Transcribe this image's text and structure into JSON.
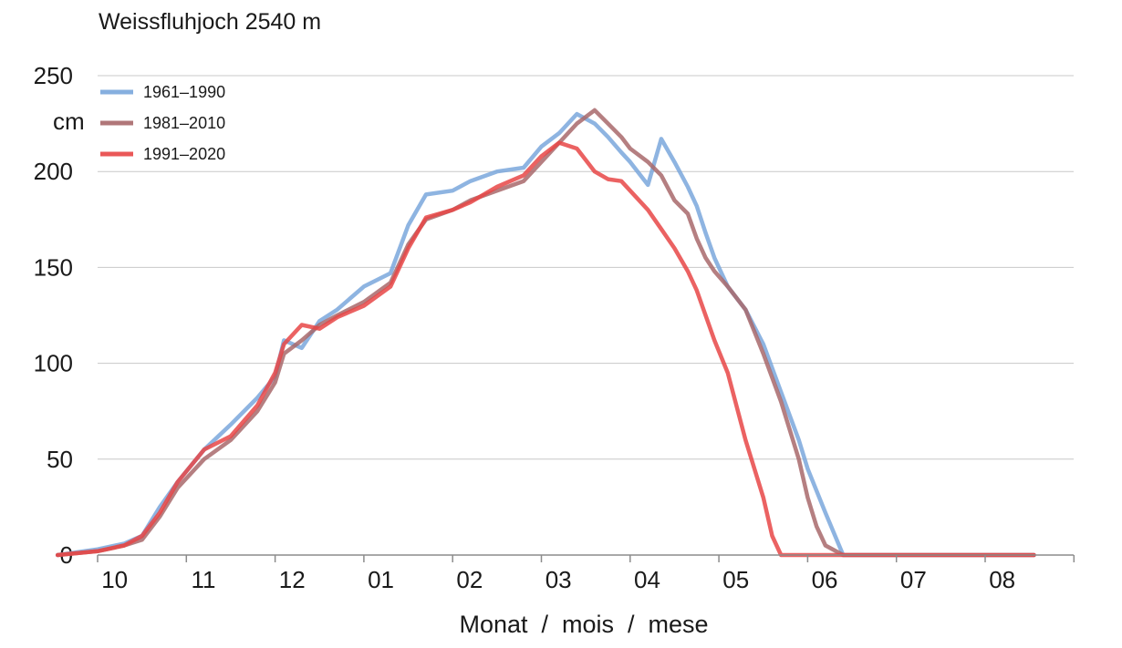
{
  "chart_data": {
    "type": "line",
    "title": "Weissfluhjoch 2540 m",
    "xlabel": "Monat  /  mois  /  mese",
    "ylabel": "cm",
    "ylim": [
      0,
      250
    ],
    "yticks": [
      0,
      50,
      100,
      150,
      200,
      250
    ],
    "month_labels": [
      "10",
      "11",
      "12",
      "01",
      "02",
      "03",
      "04",
      "05",
      "06",
      "07",
      "08"
    ],
    "grid": true,
    "legend_position": "top-left",
    "x_unit_note": "x values in months since 1 October",
    "series": [
      {
        "name": "1961–1990",
        "color": "#7aa7dc",
        "x": [
          -0.45,
          0.0,
          0.3,
          0.5,
          0.7,
          0.9,
          1.2,
          1.5,
          1.8,
          2.0,
          2.1,
          2.3,
          2.5,
          2.7,
          3.0,
          3.3,
          3.5,
          3.7,
          4.0,
          4.2,
          4.5,
          4.8,
          5.0,
          5.2,
          5.4,
          5.6,
          5.75,
          5.9,
          6.0,
          6.2,
          6.35,
          6.5,
          6.65,
          6.75,
          6.85,
          6.95,
          7.1,
          7.3,
          7.5,
          7.7,
          7.9,
          8.0,
          8.2,
          8.4,
          8.6,
          8.8,
          9.0,
          9.2,
          9.4,
          9.6,
          9.8,
          10.0,
          10.2,
          10.4,
          10.55
        ],
        "y": [
          0,
          3,
          6,
          10,
          25,
          38,
          55,
          68,
          82,
          93,
          112,
          108,
          122,
          128,
          140,
          147,
          172,
          188,
          190,
          195,
          200,
          202,
          213,
          220,
          230,
          225,
          218,
          210,
          205,
          193,
          217,
          205,
          192,
          182,
          168,
          155,
          140,
          128,
          110,
          85,
          60,
          45,
          22,
          0,
          0,
          0,
          0,
          0,
          0,
          0,
          0,
          0,
          0,
          0,
          0
        ]
      },
      {
        "name": "1981–2010",
        "color": "#a8696b",
        "x": [
          -0.45,
          0.0,
          0.3,
          0.5,
          0.7,
          0.9,
          1.2,
          1.5,
          1.8,
          2.0,
          2.1,
          2.3,
          2.5,
          2.7,
          3.0,
          3.3,
          3.5,
          3.7,
          4.0,
          4.2,
          4.5,
          4.8,
          5.0,
          5.2,
          5.4,
          5.6,
          5.75,
          5.9,
          6.0,
          6.2,
          6.35,
          6.5,
          6.65,
          6.75,
          6.85,
          6.95,
          7.1,
          7.3,
          7.5,
          7.7,
          7.9,
          8.0,
          8.1,
          8.2,
          8.4,
          8.6,
          8.8,
          9.0,
          9.2,
          9.4,
          9.6,
          9.8,
          10.0,
          10.2,
          10.4,
          10.55
        ],
        "y": [
          0,
          2,
          5,
          8,
          20,
          35,
          50,
          60,
          75,
          90,
          105,
          112,
          120,
          125,
          132,
          142,
          162,
          175,
          180,
          185,
          190,
          195,
          205,
          215,
          225,
          232,
          225,
          218,
          212,
          205,
          198,
          185,
          178,
          165,
          155,
          148,
          140,
          128,
          105,
          80,
          50,
          30,
          15,
          5,
          0,
          0,
          0,
          0,
          0,
          0,
          0,
          0,
          0,
          0,
          0,
          0
        ]
      },
      {
        "name": "1991–2020",
        "color": "#e84646",
        "x": [
          -0.45,
          0.0,
          0.3,
          0.5,
          0.7,
          0.9,
          1.2,
          1.5,
          1.8,
          2.0,
          2.1,
          2.3,
          2.5,
          2.7,
          3.0,
          3.3,
          3.5,
          3.7,
          4.0,
          4.2,
          4.5,
          4.8,
          5.0,
          5.2,
          5.4,
          5.6,
          5.75,
          5.9,
          6.0,
          6.2,
          6.35,
          6.5,
          6.65,
          6.75,
          6.85,
          6.95,
          7.1,
          7.3,
          7.5,
          7.6,
          7.7,
          7.8,
          7.9,
          8.0,
          8.2,
          8.4,
          8.6,
          8.8,
          9.0,
          9.2,
          9.4,
          9.6,
          9.8,
          10.0,
          10.2,
          10.4,
          10.55
        ],
        "y": [
          0,
          2,
          5,
          10,
          22,
          38,
          55,
          62,
          78,
          95,
          110,
          120,
          118,
          124,
          130,
          140,
          160,
          176,
          180,
          184,
          192,
          198,
          208,
          215,
          212,
          200,
          196,
          195,
          190,
          180,
          170,
          160,
          148,
          138,
          125,
          112,
          95,
          60,
          30,
          10,
          0,
          0,
          0,
          0,
          0,
          0,
          0,
          0,
          0,
          0,
          0,
          0,
          0,
          0,
          0,
          0,
          0
        ]
      }
    ]
  }
}
